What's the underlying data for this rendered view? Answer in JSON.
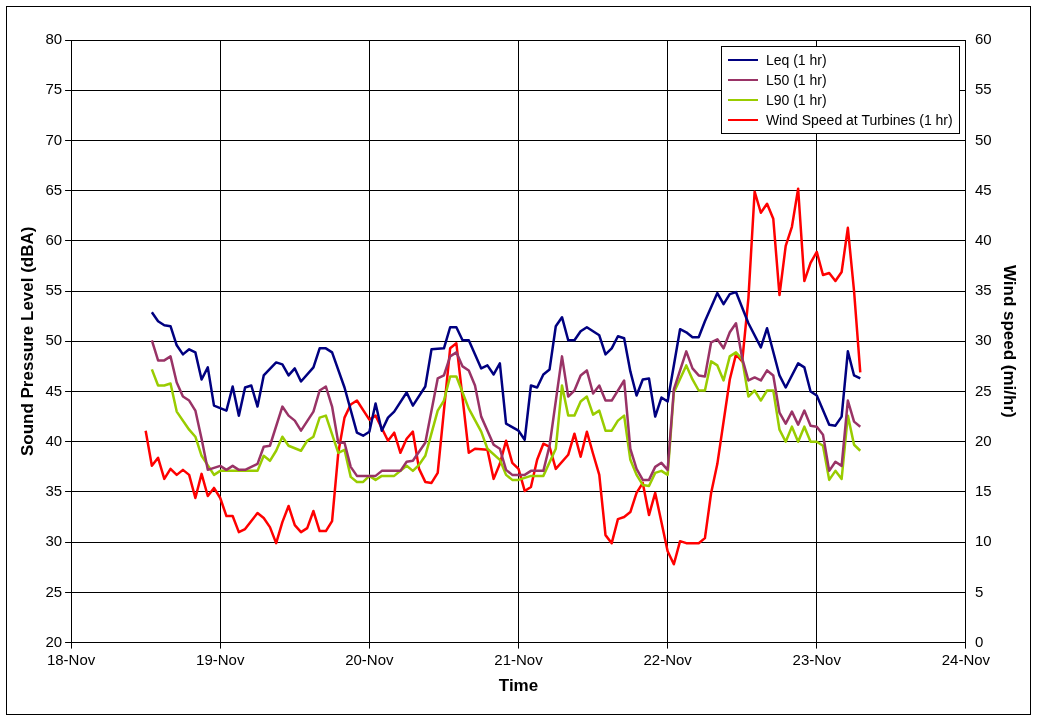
{
  "chart_data": {
    "type": "line",
    "xlabel": "Time",
    "ylabel": "Sound Pressure Level (dBA)",
    "y2label": "Wind speed (mi/hr)",
    "xlim": [
      "--11-18",
      "--11-24"
    ],
    "xticks": [
      {
        "value": "--11-18",
        "label": "18-Nov"
      },
      {
        "value": "--11-19",
        "label": "19-Nov"
      },
      {
        "value": "--11-20",
        "label": "20-Nov"
      },
      {
        "value": "--11-21",
        "label": "21-Nov"
      },
      {
        "value": "--11-22",
        "label": "22-Nov"
      },
      {
        "value": "--11-23",
        "label": "23-Nov"
      },
      {
        "value": "--11-24",
        "label": "24-Nov"
      }
    ],
    "ylim": [
      20,
      80
    ],
    "yticks": [
      20,
      25,
      30,
      35,
      40,
      45,
      50,
      55,
      60,
      65,
      70,
      75,
      80
    ],
    "y2lim": [
      0,
      60
    ],
    "y2ticks": [
      0,
      5,
      10,
      15,
      20,
      25,
      30,
      35,
      40,
      45,
      50,
      55,
      60
    ],
    "grid": true,
    "legend": "top right",
    "series": [
      {
        "name": "Leq (1 hr)",
        "color": "#000080",
        "x": [
          "--11-18T13:00",
          "--11-18T14:00",
          "--11-18T15:00",
          "--11-18T16:00",
          "--11-18T17:00",
          "--11-18T18:00",
          "--11-18T19:00",
          "--11-18T20:00",
          "--11-18T21:00",
          "--11-18T22:00",
          "--11-18T23:00",
          "--11-19T01:00",
          "--11-19T02:00",
          "--11-19T03:00",
          "--11-19T04:00",
          "--11-19T05:00",
          "--11-19T06:00",
          "--11-19T07:00",
          "--11-19T09:00",
          "--11-19T10:00",
          "--11-19T11:00",
          "--11-19T12:00",
          "--11-19T13:00",
          "--11-19T15:00",
          "--11-19T16:00",
          "--11-19T17:00",
          "--11-19T18:00",
          "--11-19T20:00",
          "--11-19T22:00",
          "--11-19T23:00",
          "--11-20T00:00",
          "--11-20T01:00",
          "--11-20T02:00",
          "--11-20T03:00",
          "--11-20T04:00",
          "--11-20T06:00",
          "--11-20T07:00",
          "--11-20T09:00",
          "--11-20T10:00",
          "--11-20T12:00",
          "--11-20T13:00",
          "--11-20T14:00",
          "--11-20T15:00",
          "--11-20T16:00",
          "--11-20T18:00",
          "--11-20T19:00",
          "--11-20T20:00",
          "--11-20T21:00",
          "--11-20T22:00",
          "--11-21T00:00",
          "--11-21T01:00",
          "--11-21T02:00",
          "--11-21T03:00",
          "--11-21T04:00",
          "--11-21T05:00",
          "--11-21T06:00",
          "--11-21T07:00",
          "--11-21T08:00",
          "--11-21T09:00",
          "--11-21T10:00",
          "--11-21T11:00",
          "--11-21T13:00",
          "--11-21T14:00",
          "--11-21T15:00",
          "--11-21T16:00",
          "--11-21T17:00",
          "--11-21T18:00",
          "--11-21T19:00",
          "--11-21T20:00",
          "--11-21T21:00",
          "--11-21T22:00",
          "--11-21T23:00",
          "--11-22T00:00",
          "--11-22T02:00",
          "--11-22T03:00",
          "--11-22T04:00",
          "--11-22T05:00",
          "--11-22T06:00",
          "--11-22T08:00",
          "--11-22T09:00",
          "--11-22T10:00",
          "--11-22T11:00",
          "--11-22T13:00",
          "--11-22T15:00",
          "--11-22T16:00",
          "--11-22T18:00",
          "--11-22T19:00",
          "--11-22T21:00",
          "--11-22T22:00",
          "--11-22T23:00",
          "--11-23T00:00",
          "--11-23T02:00",
          "--11-23T03:00",
          "--11-23T04:00",
          "--11-23T05:00",
          "--11-23T06:00",
          "--11-23T07:00"
        ],
        "values": [
          52.9,
          52.0,
          51.6,
          51.5,
          49.6,
          48.7,
          49.2,
          48.9,
          46.2,
          47.4,
          43.6,
          43.1,
          45.5,
          42.6,
          45.4,
          45.6,
          43.5,
          46.6,
          47.9,
          47.7,
          46.6,
          47.3,
          46.0,
          47.4,
          49.3,
          49.3,
          48.9,
          45.4,
          40.9,
          40.6,
          41.0,
          43.8,
          41.1,
          42.4,
          43.0,
          44.9,
          43.6,
          45.5,
          49.2,
          49.3,
          51.4,
          51.4,
          50.1,
          50.1,
          47.3,
          47.6,
          46.7,
          47.8,
          41.8,
          41.1,
          40.2,
          45.6,
          45.4,
          46.7,
          47.2,
          51.5,
          52.4,
          50.1,
          50.1,
          51.0,
          51.4,
          50.6,
          48.7,
          49.3,
          50.5,
          50.3,
          47.0,
          44.6,
          46.2,
          46.3,
          42.5,
          44.4,
          44.0,
          51.2,
          50.9,
          50.4,
          50.4,
          52.0,
          54.8,
          53.7,
          54.7,
          54.9,
          51.8,
          49.4,
          51.3,
          46.6,
          45.4,
          47.8,
          47.4,
          45.0,
          44.6,
          41.7,
          41.6,
          42.5,
          49.0,
          46.6,
          46.3
        ]
      },
      {
        "name": "L50 (1 hr)",
        "color": "#993366",
        "x": [
          "--11-18T13:00",
          "--11-18T14:00",
          "--11-18T15:00",
          "--11-18T16:00",
          "--11-18T17:00",
          "--11-18T18:00",
          "--11-18T19:00",
          "--11-18T20:00",
          "--11-18T21:00",
          "--11-18T22:00",
          "--11-19T00:00",
          "--11-19T01:00",
          "--11-19T02:00",
          "--11-19T03:00",
          "--11-19T04:00",
          "--11-19T06:00",
          "--11-19T07:00",
          "--11-19T08:00",
          "--11-19T10:00",
          "--11-19T11:00",
          "--11-19T12:00",
          "--11-19T13:00",
          "--11-19T15:00",
          "--11-19T16:00",
          "--11-19T17:00",
          "--11-19T18:00",
          "--11-19T19:00",
          "--11-19T20:00",
          "--11-19T21:00",
          "--11-19T22:00",
          "--11-20T01:00",
          "--11-20T02:00",
          "--11-20T05:00",
          "--11-20T06:00",
          "--11-20T07:00",
          "--11-20T09:00",
          "--11-20T11:00",
          "--11-20T12:00",
          "--11-20T13:00",
          "--11-20T14:00",
          "--11-20T15:00",
          "--11-20T16:00",
          "--11-20T17:00",
          "--11-20T18:00",
          "--11-20T20:00",
          "--11-20T21:00",
          "--11-20T22:00",
          "--11-20T23:00",
          "--11-21T01:00",
          "--11-21T02:00",
          "--11-21T04:00",
          "--11-21T05:00",
          "--11-21T07:00",
          "--11-21T08:00",
          "--11-21T09:00",
          "--11-21T10:00",
          "--11-21T11:00",
          "--11-21T12:00",
          "--11-21T13:00",
          "--11-21T14:00",
          "--11-21T15:00",
          "--11-21T17:00",
          "--11-21T18:00",
          "--11-21T19:00",
          "--11-21T20:00",
          "--11-21T21:00",
          "--11-21T22:00",
          "--11-21T23:00",
          "--11-22T00:00",
          "--11-22T01:00",
          "--11-22T03:00",
          "--11-22T04:00",
          "--11-22T05:00",
          "--11-22T06:00",
          "--11-22T07:00",
          "--11-22T08:00",
          "--11-22T09:00",
          "--11-22T10:00",
          "--11-22T11:00",
          "--11-22T12:00",
          "--11-22T13:00",
          "--11-22T14:00",
          "--11-22T15:00",
          "--11-22T16:00",
          "--11-22T17:00",
          "--11-22T18:00",
          "--11-22T19:00",
          "--11-22T20:00",
          "--11-22T21:00",
          "--11-22T22:00",
          "--11-22T23:00",
          "--11-23T00:00",
          "--11-23T01:00",
          "--11-23T02:00",
          "--11-23T03:00",
          "--11-23T04:00",
          "--11-23T05:00",
          "--11-23T06:00",
          "--11-23T07:00"
        ],
        "values": [
          50.1,
          48.1,
          48.1,
          48.5,
          45.9,
          44.5,
          44.1,
          43.1,
          40.3,
          37.2,
          37.6,
          37.2,
          37.6,
          37.2,
          37.2,
          37.8,
          39.5,
          39.6,
          43.5,
          42.6,
          42.1,
          41.1,
          43.0,
          45.1,
          45.5,
          43.5,
          39.9,
          39.9,
          37.5,
          36.6,
          36.6,
          37.1,
          37.1,
          38.0,
          38.1,
          39.9,
          46.3,
          46.6,
          48.5,
          48.9,
          47.5,
          47.1,
          45.6,
          42.5,
          39.7,
          39.3,
          37.2,
          36.7,
          36.7,
          37.1,
          37.1,
          39.6,
          48.5,
          44.5,
          45.1,
          46.6,
          47.1,
          44.8,
          45.6,
          44.1,
          44.1,
          46.1,
          39.3,
          37.3,
          36.2,
          36.2,
          37.5,
          37.9,
          37.2,
          45.2,
          49.0,
          47.3,
          46.6,
          46.5,
          49.9,
          50.2,
          49.3,
          50.9,
          51.8,
          48.3,
          46.1,
          46.4,
          46.1,
          47.1,
          46.6,
          42.9,
          41.8,
          43.0,
          41.7,
          43.1,
          41.6,
          41.5,
          40.7,
          37.1,
          38.0,
          37.6,
          44.1,
          42.0,
          41.5
        ]
      },
      {
        "name": "L90 (1 hr)",
        "color": "#99cc00",
        "x": [
          "--11-18T13:00",
          "--11-18T14:00",
          "--11-18T15:00",
          "--11-18T16:00",
          "--11-18T17:00",
          "--11-18T19:00",
          "--11-18T20:00",
          "--11-18T21:00",
          "--11-18T23:00",
          "--11-19T00:00",
          "--11-19T06:00",
          "--11-19T07:00",
          "--11-19T08:00",
          "--11-19T09:00",
          "--11-19T10:00",
          "--11-19T11:00",
          "--11-19T13:00",
          "--11-19T14:00",
          "--11-19T15:00",
          "--11-19T16:00",
          "--11-19T17:00",
          "--11-19T19:00",
          "--11-19T20:00",
          "--11-19T21:00",
          "--11-19T22:00",
          "--11-19T23:00",
          "--11-20T00:00",
          "--11-20T01:00",
          "--11-20T02:00",
          "--11-20T04:00",
          "--11-20T06:00",
          "--11-20T07:00",
          "--11-20T08:00",
          "--11-20T09:00",
          "--11-20T11:00",
          "--11-20T12:00",
          "--11-20T13:00",
          "--11-20T14:00",
          "--11-20T15:00",
          "--11-20T16:00",
          "--11-20T18:00",
          "--11-20T19:00",
          "--11-20T21:00",
          "--11-20T22:00",
          "--11-20T23:00",
          "--11-21T00:00",
          "--11-21T02:00",
          "--11-21T04:00",
          "--11-21T06:00",
          "--11-21T07:00",
          "--11-21T08:00",
          "--11-21T09:00",
          "--11-21T10:00",
          "--11-21T11:00",
          "--11-21T12:00",
          "--11-21T13:00",
          "--11-21T14:00",
          "--11-21T15:00",
          "--11-21T16:00",
          "--11-21T17:00",
          "--11-21T18:00",
          "--11-21T19:00",
          "--11-21T20:00",
          "--11-21T21:00",
          "--11-21T22:00",
          "--11-21T23:00",
          "--11-22T00:00",
          "--11-22T01:00",
          "--11-22T03:00",
          "--11-22T04:00",
          "--11-22T05:00",
          "--11-22T06:00",
          "--11-22T07:00",
          "--11-22T08:00",
          "--11-22T09:00",
          "--11-22T10:00",
          "--11-22T11:00",
          "--11-22T12:00",
          "--11-22T13:00",
          "--11-22T14:00",
          "--11-22T15:00",
          "--11-22T16:00",
          "--11-22T17:00",
          "--11-22T18:00",
          "--11-22T19:00",
          "--11-22T20:00",
          "--11-22T21:00",
          "--11-22T22:00",
          "--11-22T23:00",
          "--11-23T00:00",
          "--11-23T01:00",
          "--11-23T02:00",
          "--11-23T03:00",
          "--11-23T04:00",
          "--11-23T05:00",
          "--11-23T06:00",
          "--11-23T07:00"
        ],
        "values": [
          47.2,
          45.6,
          45.6,
          45.8,
          43.0,
          41.2,
          40.5,
          38.6,
          36.7,
          37.1,
          37.1,
          38.6,
          38.1,
          39.1,
          40.5,
          39.6,
          39.1,
          40.1,
          40.5,
          42.4,
          42.6,
          38.9,
          39.2,
          36.5,
          36.0,
          36.0,
          36.6,
          36.2,
          36.6,
          36.6,
          37.6,
          37.1,
          37.7,
          38.6,
          43.1,
          44.1,
          46.5,
          46.5,
          44.9,
          43.3,
          41.0,
          39.3,
          38.2,
          36.7,
          36.2,
          36.2,
          36.6,
          36.6,
          39.3,
          45.6,
          42.6,
          42.6,
          44.0,
          44.5,
          42.7,
          43.1,
          41.1,
          41.1,
          42.1,
          42.6,
          38.2,
          36.7,
          35.7,
          35.6,
          36.9,
          37.1,
          36.7,
          44.9,
          47.6,
          46.2,
          45.1,
          45.1,
          48.0,
          47.6,
          46.1,
          48.5,
          48.9,
          48.2,
          44.5,
          45.1,
          44.1,
          45.1,
          45.1,
          41.2,
          40.0,
          41.5,
          40.0,
          41.5,
          40.0,
          40.0,
          39.6,
          36.2,
          37.1,
          36.3,
          42.6,
          39.7,
          39.1
        ]
      },
      {
        "name": "Wind Speed at Turbines (1 hr)",
        "color": "#ff0000",
        "axis": "y2",
        "x": [
          "--11-18T12:00",
          "--11-18T13:00",
          "--11-18T14:00",
          "--11-18T15:00",
          "--11-18T16:00",
          "--11-18T17:00",
          "--11-18T18:00",
          "--11-18T19:00",
          "--11-18T20:00",
          "--11-18T21:00",
          "--11-18T22:00",
          "--11-18T23:00",
          "--11-19T00:00",
          "--11-19T01:00",
          "--11-19T02:00",
          "--11-19T03:00",
          "--11-19T04:00",
          "--11-19T06:00",
          "--11-19T07:00",
          "--11-19T08:00",
          "--11-19T09:00",
          "--11-19T10:00",
          "--11-19T11:00",
          "--11-19T12:00",
          "--11-19T13:00",
          "--11-19T14:00",
          "--11-19T15:00",
          "--11-19T16:00",
          "--11-19T17:00",
          "--11-19T18:00",
          "--11-19T19:00",
          "--11-19T20:00",
          "--11-19T21:00",
          "--11-19T22:00",
          "--11-20T00:00",
          "--11-20T01:00",
          "--11-20T03:00",
          "--11-20T04:00",
          "--11-20T05:00",
          "--11-20T06:00",
          "--11-20T07:00",
          "--11-20T08:00",
          "--11-20T09:00",
          "--11-20T10:00",
          "--11-20T11:00",
          "--11-20T13:00",
          "--11-20T14:00",
          "--11-20T16:00",
          "--11-20T17:00",
          "--11-20T19:00",
          "--11-20T20:00",
          "--11-20T21:00",
          "--11-20T22:00",
          "--11-20T23:00",
          "--11-21T00:00",
          "--11-21T01:00",
          "--11-21T02:00",
          "--11-21T03:00",
          "--11-21T04:00",
          "--11-21T05:00",
          "--11-21T06:00",
          "--11-21T08:00",
          "--11-21T09:00",
          "--11-21T10:00",
          "--11-21T11:00",
          "--11-21T12:00",
          "--11-21T13:00",
          "--11-21T14:00",
          "--11-21T15:00",
          "--11-21T16:00",
          "--11-21T17:00",
          "--11-21T18:00",
          "--11-21T19:00",
          "--11-21T20:00",
          "--11-21T21:00",
          "--11-21T22:00",
          "--11-22T00:00",
          "--11-22T01:00",
          "--11-22T02:00",
          "--11-22T03:00",
          "--11-22T05:00",
          "--11-22T06:00",
          "--11-22T07:00",
          "--11-22T08:00",
          "--11-22T10:00",
          "--11-22T11:00",
          "--11-22T12:00",
          "--11-22T13:00",
          "--11-22T14:00",
          "--11-22T15:00",
          "--11-22T16:00",
          "--11-22T17:00",
          "--11-22T18:00",
          "--11-22T19:00",
          "--11-22T20:00",
          "--11-22T21:00",
          "--11-22T22:00",
          "--11-22T23:00",
          "--11-23T00:00",
          "--11-23T01:00",
          "--11-23T02:00",
          "--11-23T03:00",
          "--11-23T04:00",
          "--11-23T05:00",
          "--11-23T06:00",
          "--11-23T07:00"
        ],
        "values": [
          21.1,
          17.6,
          18.4,
          16.3,
          17.3,
          16.7,
          17.2,
          16.7,
          14.4,
          16.8,
          14.6,
          15.4,
          14.4,
          12.6,
          12.6,
          11.0,
          11.3,
          12.9,
          12.4,
          11.5,
          9.9,
          12.0,
          13.6,
          11.7,
          11.0,
          11.4,
          13.1,
          11.1,
          11.1,
          12.1,
          18.9,
          22.4,
          23.7,
          24.1,
          22.2,
          22.6,
          20.1,
          20.9,
          18.9,
          20.3,
          21.0,
          17.3,
          16.0,
          15.9,
          16.9,
          29.3,
          29.8,
          18.9,
          19.3,
          19.2,
          16.3,
          17.8,
          20.1,
          17.9,
          17.3,
          15.1,
          15.5,
          18.2,
          19.8,
          19.5,
          17.3,
          18.7,
          20.8,
          18.5,
          21.0,
          18.8,
          16.7,
          10.7,
          9.9,
          12.3,
          12.5,
          13.0,
          14.9,
          15.9,
          12.7,
          14.9,
          9.1,
          7.8,
          10.1,
          9.9,
          9.9,
          10.4,
          14.9,
          17.8,
          26.2,
          28.7,
          28.0,
          34.3,
          44.9,
          42.8,
          43.7,
          42.2,
          34.6,
          39.5,
          41.4,
          45.2,
          36.0,
          37.8,
          38.9,
          36.6,
          36.8,
          36.0,
          36.9,
          41.3,
          35.0,
          26.9
        ]
      }
    ]
  }
}
